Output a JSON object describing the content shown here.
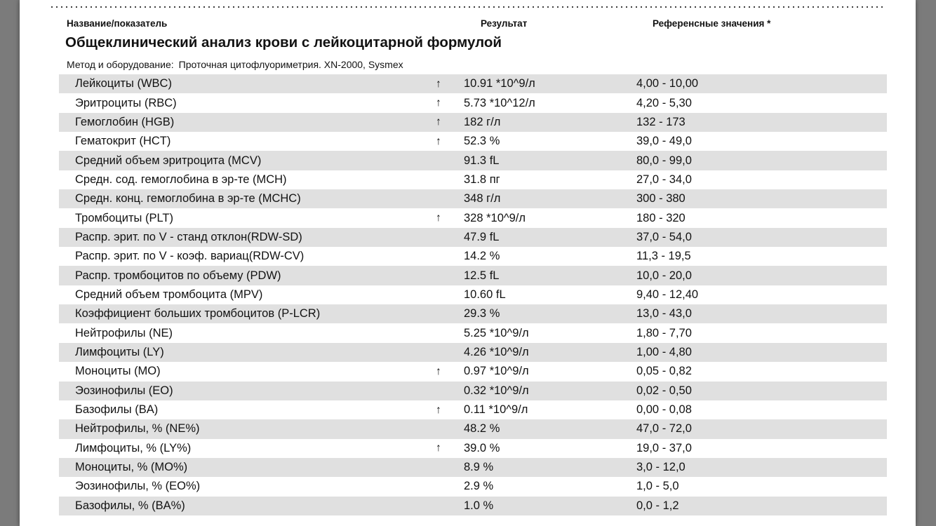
{
  "page": {
    "viewer_background_color": "#7b7b7b",
    "paper_color": "#ffffff",
    "row_stripe_color": "#e0e0e0",
    "text_color": "#121212"
  },
  "table_header": {
    "name": "Название/показатель",
    "result": "Результат",
    "reference": "Референсные значения *"
  },
  "section": {
    "title": "Общеклинический анализ крови с лейкоцитарной формулой",
    "method_label": "Метод и оборудование:",
    "method_value": "Проточная цитофлуориметрия. XN-2000, Sysmex"
  },
  "flags": {
    "high_symbol": "↑"
  },
  "rows": [
    {
      "name": "Лейкоциты (WBC)",
      "flag": "high",
      "result": "10.91 *10^9/л",
      "reference": "4,00 - 10,00"
    },
    {
      "name": "Эритроциты (RBC)",
      "flag": "high",
      "result": "5.73 *10^12/л",
      "reference": "4,20 - 5,30"
    },
    {
      "name": "Гемоглобин (HGB)",
      "flag": "high",
      "result": "182 г/л",
      "reference": "132 - 173"
    },
    {
      "name": "Гематокрит (HCT)",
      "flag": "high",
      "result": "52.3 %",
      "reference": "39,0 - 49,0"
    },
    {
      "name": "Средний объем эритроцита (MCV)",
      "flag": "",
      "result": "91.3 fL",
      "reference": "80,0 - 99,0"
    },
    {
      "name": "Средн. сод. гемоглобина в эр-те (MCH)",
      "flag": "",
      "result": "31.8 пг",
      "reference": "27,0 - 34,0"
    },
    {
      "name": "Средн. конц. гемоглобина в эр-те (MCHC)",
      "flag": "",
      "result": "348 г/л",
      "reference": "300 - 380"
    },
    {
      "name": "Тромбоциты (PLT)",
      "flag": "high",
      "result": "328 *10^9/л",
      "reference": "180 - 320"
    },
    {
      "name": "Распр. эрит. по V - станд отклон(RDW-SD)",
      "flag": "",
      "result": "47.9 fL",
      "reference": "37,0 - 54,0"
    },
    {
      "name": "Распр. эрит. по V - коэф. вариац(RDW-CV)",
      "flag": "",
      "result": "14.2 %",
      "reference": "11,3 - 19,5"
    },
    {
      "name": "Распр. тромбоцитов по объему (PDW)",
      "flag": "",
      "result": "12.5 fL",
      "reference": "10,0 - 20,0"
    },
    {
      "name": "Средний объем тромбоцита (MPV)",
      "flag": "",
      "result": "10.60 fL",
      "reference": "9,40 - 12,40"
    },
    {
      "name": "Коэффициент больших тромбоцитов (P-LCR)",
      "flag": "",
      "result": "29.3 %",
      "reference": "13,0 - 43,0"
    },
    {
      "name": "Нейтрофилы (NE)",
      "flag": "",
      "result": "5.25 *10^9/л",
      "reference": "1,80 - 7,70"
    },
    {
      "name": "Лимфоциты (LY)",
      "flag": "",
      "result": "4.26 *10^9/л",
      "reference": "1,00 - 4,80"
    },
    {
      "name": "Моноциты (MO)",
      "flag": "high",
      "result": "0.97 *10^9/л",
      "reference": "0,05 - 0,82"
    },
    {
      "name": "Эозинофилы (EO)",
      "flag": "",
      "result": "0.32 *10^9/л",
      "reference": "0,02 - 0,50"
    },
    {
      "name": "Базофилы (BA)",
      "flag": "high",
      "result": "0.11 *10^9/л",
      "reference": "0,00 - 0,08"
    },
    {
      "name": "Нейтрофилы, % (NE%)",
      "flag": "",
      "result": "48.2 %",
      "reference": "47,0 - 72,0"
    },
    {
      "name": "Лимфоциты, % (LY%)",
      "flag": "high",
      "result": "39.0 %",
      "reference": "19,0 - 37,0"
    },
    {
      "name": "Моноциты, % (MO%)",
      "flag": "",
      "result": "8.9 %",
      "reference": "3,0 - 12,0"
    },
    {
      "name": "Эозинофилы, % (EO%)",
      "flag": "",
      "result": "2.9 %",
      "reference": "1,0 - 5,0"
    },
    {
      "name": "Базофилы, % (BA%)",
      "flag": "",
      "result": "1.0 %",
      "reference": "0,0 - 1,2"
    }
  ]
}
